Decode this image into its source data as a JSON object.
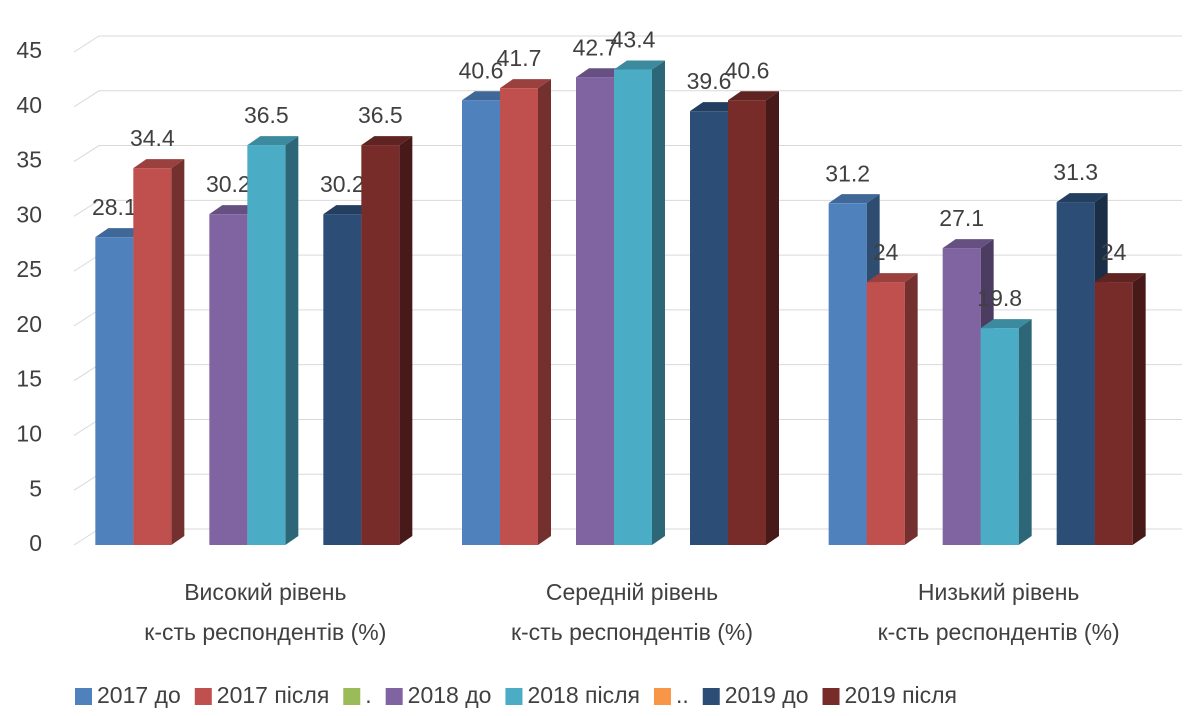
{
  "chart_data": {
    "type": "bar3d",
    "categories": [
      [
        "Високий рівень",
        "к-сть респондентів (%)"
      ],
      [
        "Середній рівень",
        "к-сть респондентів (%)"
      ],
      [
        "Низький рівень",
        "к-сть респондентів (%)"
      ]
    ],
    "series": [
      {
        "name": "2017 до",
        "color": "#4f81bd",
        "values": [
          28.1,
          40.6,
          31.2
        ]
      },
      {
        "name": "2017 після",
        "color": "#c0504d",
        "values": [
          34.4,
          41.7,
          24
        ]
      },
      {
        "name": ".",
        "color": "#9bbb59",
        "values": [
          null,
          null,
          null
        ]
      },
      {
        "name": "2018 до",
        "color": "#8064a2",
        "values": [
          30.2,
          42.7,
          27.1
        ]
      },
      {
        "name": "2018 після",
        "color": "#4bacc6",
        "values": [
          36.5,
          43.4,
          19.8
        ]
      },
      {
        "name": "..",
        "color": "#f79646",
        "values": [
          null,
          null,
          null
        ]
      },
      {
        "name": "2019 до",
        "color": "#2c4d75",
        "values": [
          30.2,
          39.6,
          31.3
        ]
      },
      {
        "name": "2019 після",
        "color": "#772c2a",
        "values": [
          36.5,
          40.6,
          24
        ]
      }
    ],
    "ylim": [
      0,
      45
    ],
    "yticks": [
      0,
      5,
      10,
      15,
      20,
      25,
      30,
      35,
      40,
      45
    ],
    "grid": true,
    "legend": "bottom"
  }
}
